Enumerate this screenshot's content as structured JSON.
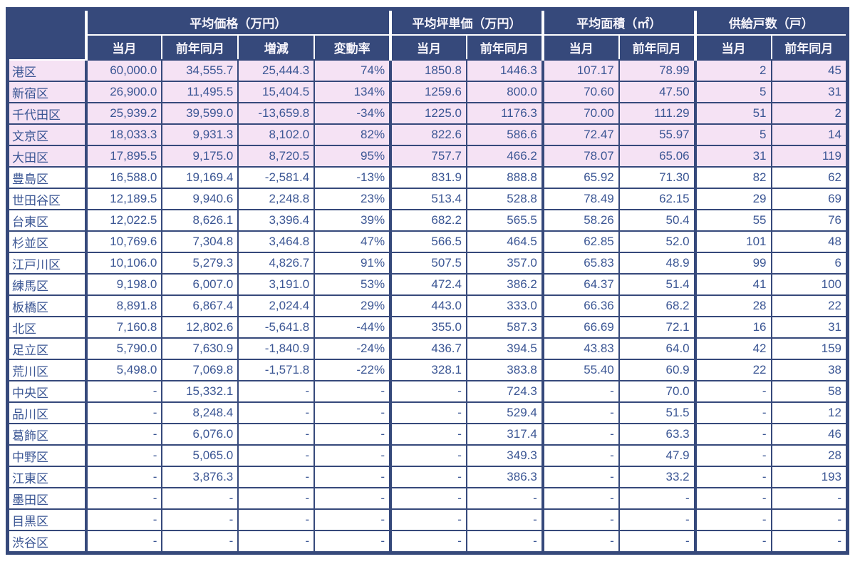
{
  "colors": {
    "header_bg": "#36497B",
    "header_text": "#F7F5FB",
    "body_text": "#3B5694",
    "border": "#36497B",
    "highlight_row_bg": "#F5E2F4",
    "row_bg": "#FFFFFF"
  },
  "chart_data": {
    "type": "table",
    "title": "",
    "corner_label": "",
    "column_groups": [
      {
        "label": "平均価格（万円）",
        "sub_headers": [
          "当月",
          "前年同月",
          "増減",
          "変動率"
        ]
      },
      {
        "label": "平均坪単価（万円）",
        "sub_headers": [
          "当月",
          "前年同月"
        ]
      },
      {
        "label": "平均面積（㎡）",
        "sub_headers": [
          "当月",
          "前年同月"
        ]
      },
      {
        "label": "供給戸数（戸）",
        "sub_headers": [
          "当月",
          "前年同月"
        ]
      }
    ],
    "group_start_value_indices": [
      0,
      4,
      6,
      8
    ],
    "rows": [
      {
        "ward": "港区",
        "highlight": true,
        "values": [
          "60,000.0",
          "34,555.7",
          "25,444.3",
          "74%",
          "1850.8",
          "1446.3",
          "107.17",
          "78.99",
          "2",
          "45"
        ]
      },
      {
        "ward": "新宿区",
        "highlight": true,
        "values": [
          "26,900.0",
          "11,495.5",
          "15,404.5",
          "134%",
          "1259.6",
          "800.0",
          "70.60",
          "47.50",
          "5",
          "31"
        ]
      },
      {
        "ward": "千代田区",
        "highlight": true,
        "values": [
          "25,939.2",
          "39,599.0",
          "-13,659.8",
          "-34%",
          "1225.0",
          "1176.3",
          "70.00",
          "111.29",
          "51",
          "2"
        ]
      },
      {
        "ward": "文京区",
        "highlight": true,
        "values": [
          "18,033.3",
          "9,931.3",
          "8,102.0",
          "82%",
          "822.6",
          "586.6",
          "72.47",
          "55.97",
          "5",
          "14"
        ]
      },
      {
        "ward": "大田区",
        "highlight": true,
        "values": [
          "17,895.5",
          "9,175.0",
          "8,720.5",
          "95%",
          "757.7",
          "466.2",
          "78.07",
          "65.06",
          "31",
          "119"
        ]
      },
      {
        "ward": "豊島区",
        "highlight": false,
        "values": [
          "16,588.0",
          "19,169.4",
          "-2,581.4",
          "-13%",
          "831.9",
          "888.8",
          "65.92",
          "71.30",
          "82",
          "62"
        ]
      },
      {
        "ward": "世田谷区",
        "highlight": false,
        "values": [
          "12,189.5",
          "9,940.6",
          "2,248.8",
          "23%",
          "513.4",
          "528.8",
          "78.49",
          "62.15",
          "29",
          "69"
        ]
      },
      {
        "ward": "台東区",
        "highlight": false,
        "values": [
          "12,022.5",
          "8,626.1",
          "3,396.4",
          "39%",
          "682.2",
          "565.5",
          "58.26",
          "50.4",
          "55",
          "76"
        ]
      },
      {
        "ward": "杉並区",
        "highlight": false,
        "values": [
          "10,769.6",
          "7,304.8",
          "3,464.8",
          "47%",
          "566.5",
          "464.5",
          "62.85",
          "52.0",
          "101",
          "48"
        ]
      },
      {
        "ward": "江戸川区",
        "highlight": false,
        "values": [
          "10,106.0",
          "5,279.3",
          "4,826.7",
          "91%",
          "507.5",
          "357.0",
          "65.83",
          "48.9",
          "99",
          "6"
        ]
      },
      {
        "ward": "練馬区",
        "highlight": false,
        "values": [
          "9,198.0",
          "6,007.0",
          "3,191.0",
          "53%",
          "472.4",
          "386.2",
          "64.37",
          "51.4",
          "41",
          "100"
        ]
      },
      {
        "ward": "板橋区",
        "highlight": false,
        "values": [
          "8,891.8",
          "6,867.4",
          "2,024.4",
          "29%",
          "443.0",
          "333.0",
          "66.36",
          "68.2",
          "28",
          "22"
        ]
      },
      {
        "ward": "北区",
        "highlight": false,
        "values": [
          "7,160.8",
          "12,802.6",
          "-5,641.8",
          "-44%",
          "355.0",
          "587.3",
          "66.69",
          "72.1",
          "16",
          "31"
        ]
      },
      {
        "ward": "足立区",
        "highlight": false,
        "values": [
          "5,790.0",
          "7,630.9",
          "-1,840.9",
          "-24%",
          "436.7",
          "394.5",
          "43.83",
          "64.0",
          "42",
          "159"
        ]
      },
      {
        "ward": "荒川区",
        "highlight": false,
        "values": [
          "5,498.0",
          "7,069.8",
          "-1,571.8",
          "-22%",
          "328.1",
          "383.8",
          "55.40",
          "60.9",
          "22",
          "38"
        ]
      },
      {
        "ward": "中央区",
        "highlight": false,
        "values": [
          "-",
          "15,332.1",
          "-",
          "-",
          "-",
          "724.3",
          "-",
          "70.0",
          "-",
          "58"
        ]
      },
      {
        "ward": "品川区",
        "highlight": false,
        "values": [
          "-",
          "8,248.4",
          "-",
          "-",
          "-",
          "529.4",
          "-",
          "51.5",
          "-",
          "12"
        ]
      },
      {
        "ward": "葛飾区",
        "highlight": false,
        "values": [
          "-",
          "6,076.0",
          "-",
          "-",
          "-",
          "317.4",
          "-",
          "63.3",
          "-",
          "46"
        ]
      },
      {
        "ward": "中野区",
        "highlight": false,
        "values": [
          "-",
          "5,065.0",
          "-",
          "-",
          "-",
          "349.3",
          "-",
          "47.9",
          "-",
          "28"
        ]
      },
      {
        "ward": "江東区",
        "highlight": false,
        "values": [
          "-",
          "3,876.3",
          "-",
          "-",
          "-",
          "386.3",
          "-",
          "33.2",
          "-",
          "193"
        ]
      },
      {
        "ward": "墨田区",
        "highlight": false,
        "values": [
          "-",
          "-",
          "-",
          "-",
          "-",
          "-",
          "-",
          "-",
          "-",
          "-"
        ]
      },
      {
        "ward": "目黒区",
        "highlight": false,
        "values": [
          "-",
          "-",
          "-",
          "-",
          "-",
          "-",
          "-",
          "-",
          "-",
          "-"
        ]
      },
      {
        "ward": "渋谷区",
        "highlight": false,
        "values": [
          "-",
          "-",
          "-",
          "-",
          "-",
          "-",
          "-",
          "-",
          "-",
          "-"
        ]
      }
    ]
  }
}
